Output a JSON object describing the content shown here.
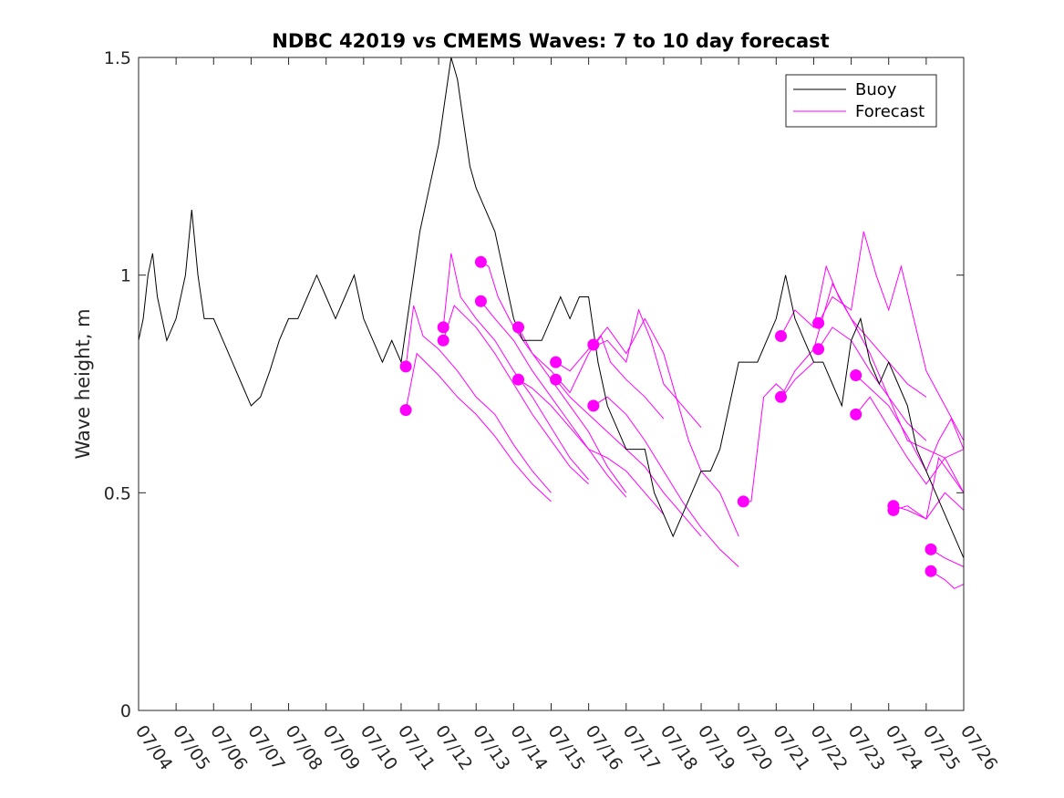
{
  "chart_data": {
    "type": "line",
    "title": "NDBC 42019 vs CMEMS Waves: 7 to 10 day forecast",
    "xlabel": "",
    "ylabel": "Wave height, m",
    "xlim": [
      "07/04",
      "07/26"
    ],
    "ylim": [
      0,
      1.5
    ],
    "x_ticks": [
      "07/04",
      "07/05",
      "07/06",
      "07/07",
      "07/08",
      "07/09",
      "07/10",
      "07/11",
      "07/12",
      "07/13",
      "07/14",
      "07/15",
      "07/16",
      "07/17",
      "07/18",
      "07/19",
      "07/20",
      "07/21",
      "07/22",
      "07/23",
      "07/24",
      "07/25",
      "07/26"
    ],
    "y_ticks": [
      "0",
      "0.5",
      "1",
      "1.5"
    ],
    "grid": false,
    "legend": {
      "placement": "top-right",
      "entries": [
        "Buoy",
        "Forecast"
      ]
    },
    "colors": {
      "buoy": "#000000",
      "forecast": "#ff00ff"
    },
    "buoy": {
      "name": "Buoy",
      "x": [
        "07/04 00:00",
        "07/04 03:00",
        "07/04 06:00",
        "07/04 09:00",
        "07/04 12:00",
        "07/04 18:00",
        "07/05 00:00",
        "07/05 06:00",
        "07/05 10:00",
        "07/05 14:00",
        "07/05 18:00",
        "07/06 00:00",
        "07/06 06:00",
        "07/06 12:00",
        "07/06 18:00",
        "07/07 00:00",
        "07/07 06:00",
        "07/07 12:00",
        "07/07 18:00",
        "07/08 00:00",
        "07/08 06:00",
        "07/08 12:00",
        "07/08 18:00",
        "07/09 00:00",
        "07/09 06:00",
        "07/09 12:00",
        "07/09 18:00",
        "07/10 00:00",
        "07/10 06:00",
        "07/10 12:00",
        "07/10 18:00",
        "07/11 00:00",
        "07/11 04:00",
        "07/11 08:00",
        "07/11 12:00",
        "07/11 18:00",
        "07/12 00:00",
        "07/12 04:00",
        "07/12 08:00",
        "07/12 12:00",
        "07/12 16:00",
        "07/12 20:00",
        "07/13 00:00",
        "07/13 06:00",
        "07/13 12:00",
        "07/13 18:00",
        "07/14 00:00",
        "07/14 06:00",
        "07/14 12:00",
        "07/14 18:00",
        "07/15 00:00",
        "07/15 06:00",
        "07/15 12:00",
        "07/15 18:00",
        "07/16 00:00",
        "07/16 06:00",
        "07/16 12:00",
        "07/16 18:00",
        "07/17 00:00",
        "07/17 06:00",
        "07/17 12:00",
        "07/17 18:00",
        "07/18 00:00",
        "07/18 06:00",
        "07/18 12:00",
        "07/18 18:00",
        "07/19 00:00",
        "07/19 06:00",
        "07/19 12:00",
        "07/19 18:00",
        "07/20 00:00",
        "07/20 06:00",
        "07/20 12:00",
        "07/20 18:00",
        "07/21 00:00",
        "07/21 06:00",
        "07/21 12:00",
        "07/21 18:00",
        "07/22 00:00",
        "07/22 06:00",
        "07/22 12:00",
        "07/22 18:00",
        "07/23 00:00",
        "07/23 06:00",
        "07/23 12:00",
        "07/23 18:00",
        "07/24 00:00",
        "07/24 06:00",
        "07/24 12:00",
        "07/24 18:00",
        "07/25 00:00",
        "07/25 06:00",
        "07/25 12:00",
        "07/25 18:00",
        "07/26 00:00"
      ],
      "y": [
        0.85,
        0.9,
        1.0,
        1.05,
        0.95,
        0.85,
        0.9,
        1.0,
        1.15,
        1.0,
        0.9,
        0.9,
        0.85,
        0.8,
        0.75,
        0.7,
        0.72,
        0.78,
        0.85,
        0.9,
        0.9,
        0.95,
        1.0,
        0.95,
        0.9,
        0.95,
        1.0,
        0.9,
        0.85,
        0.8,
        0.85,
        0.8,
        0.9,
        1.0,
        1.1,
        1.2,
        1.3,
        1.4,
        1.5,
        1.45,
        1.35,
        1.25,
        1.2,
        1.15,
        1.1,
        1.0,
        0.9,
        0.85,
        0.85,
        0.85,
        0.9,
        0.95,
        0.9,
        0.95,
        0.95,
        0.8,
        0.7,
        0.65,
        0.6,
        0.6,
        0.6,
        0.5,
        0.45,
        0.4,
        0.45,
        0.5,
        0.55,
        0.55,
        0.6,
        0.7,
        0.8,
        0.8,
        0.8,
        0.85,
        0.9,
        1.0,
        0.9,
        0.85,
        0.8,
        0.8,
        0.75,
        0.7,
        0.85,
        0.9,
        0.8,
        0.75,
        0.8,
        0.75,
        0.7,
        0.6,
        0.55,
        0.5,
        0.45,
        0.4,
        0.35
      ]
    },
    "forecasts": [
      {
        "name": "",
        "x": [
          "07/11 03:00",
          "07/11 08:00",
          "07/11 14:00",
          "07/12 00:00",
          "07/12 12:00",
          "07/13 00:00",
          "07/13 12:00",
          "07/14 00:00",
          "07/14 12:00",
          "07/15 00:00"
        ],
        "y": [
          0.79,
          0.93,
          0.86,
          0.83,
          0.78,
          0.72,
          0.68,
          0.61,
          0.55,
          0.5
        ]
      },
      {
        "name": "",
        "x": [
          "07/11 03:00",
          "07/11 10:00",
          "07/12 00:00",
          "07/12 12:00",
          "07/13 00:00",
          "07/13 12:00",
          "07/14 00:00",
          "07/14 12:00",
          "07/15 00:00"
        ],
        "y": [
          0.69,
          0.82,
          0.77,
          0.72,
          0.68,
          0.63,
          0.57,
          0.52,
          0.48
        ]
      },
      {
        "name": "",
        "x": [
          "07/12 03:00",
          "07/12 08:00",
          "07/12 14:00",
          "07/13 00:00",
          "07/13 12:00",
          "07/14 00:00",
          "07/14 12:00",
          "07/15 00:00",
          "07/15 12:00",
          "07/16 00:00"
        ],
        "y": [
          0.88,
          1.05,
          0.95,
          0.9,
          0.85,
          0.78,
          0.72,
          0.65,
          0.58,
          0.53
        ]
      },
      {
        "name": "",
        "x": [
          "07/12 03:00",
          "07/12 10:00",
          "07/13 00:00",
          "07/13 12:00",
          "07/14 00:00",
          "07/14 12:00",
          "07/15 00:00",
          "07/15 12:00",
          "07/16 00:00"
        ],
        "y": [
          0.85,
          0.93,
          0.88,
          0.82,
          0.75,
          0.68,
          0.62,
          0.56,
          0.52
        ]
      },
      {
        "name": "",
        "x": [
          "07/13 03:00",
          "07/13 08:00",
          "07/13 14:00",
          "07/14 00:00",
          "07/14 12:00",
          "07/15 00:00",
          "07/15 12:00",
          "07/16 00:00",
          "07/16 12:00",
          "07/17 00:00"
        ],
        "y": [
          1.03,
          1.02,
          0.95,
          0.88,
          0.82,
          0.76,
          0.7,
          0.64,
          0.56,
          0.5
        ]
      },
      {
        "name": "",
        "x": [
          "07/13 03:00",
          "07/13 12:00",
          "07/14 00:00",
          "07/14 12:00",
          "07/15 00:00",
          "07/15 12:00",
          "07/16 00:00",
          "07/16 12:00",
          "07/17 00:00"
        ],
        "y": [
          0.94,
          0.9,
          0.85,
          0.78,
          0.72,
          0.66,
          0.6,
          0.54,
          0.49
        ]
      },
      {
        "name": "",
        "x": [
          "07/14 03:00",
          "07/14 12:00",
          "07/15 00:00",
          "07/15 12:00",
          "07/16 00:00",
          "07/16 08:00",
          "07/16 14:00",
          "07/17 00:00",
          "07/17 12:00",
          "07/18 00:00"
        ],
        "y": [
          0.88,
          0.82,
          0.78,
          0.73,
          0.82,
          0.86,
          0.8,
          0.76,
          0.72,
          0.67
        ]
      },
      {
        "name": "",
        "x": [
          "07/14 03:00",
          "07/14 12:00",
          "07/15 00:00",
          "07/15 12:00",
          "07/16 00:00",
          "07/16 12:00",
          "07/17 00:00",
          "07/17 12:00",
          "07/18 00:00"
        ],
        "y": [
          0.76,
          0.74,
          0.7,
          0.65,
          0.6,
          0.58,
          0.55,
          0.5,
          0.45
        ]
      },
      {
        "name": "",
        "x": [
          "07/15 03:00",
          "07/15 12:00",
          "07/16 00:00",
          "07/16 12:00",
          "07/17 00:00",
          "07/17 08:00",
          "07/17 16:00",
          "07/18 00:00",
          "07/18 12:00",
          "07/19 00:00"
        ],
        "y": [
          0.8,
          0.78,
          0.83,
          0.85,
          0.8,
          0.92,
          0.85,
          0.75,
          0.7,
          0.65
        ]
      },
      {
        "name": "",
        "x": [
          "07/15 03:00",
          "07/15 12:00",
          "07/16 00:00",
          "07/16 12:00",
          "07/17 00:00",
          "07/17 12:00",
          "07/18 00:00",
          "07/18 12:00",
          "07/19 00:00"
        ],
        "y": [
          0.76,
          0.72,
          0.68,
          0.64,
          0.6,
          0.56,
          0.5,
          0.45,
          0.4
        ]
      },
      {
        "name": "",
        "x": [
          "07/16 03:00",
          "07/16 12:00",
          "07/17 00:00",
          "07/17 12:00",
          "07/18 00:00",
          "07/18 08:00",
          "07/18 16:00",
          "07/19 00:00",
          "07/19 12:00",
          "07/20 00:00"
        ],
        "y": [
          0.84,
          0.88,
          0.82,
          0.9,
          0.82,
          0.72,
          0.62,
          0.55,
          0.5,
          0.4
        ]
      },
      {
        "name": "",
        "x": [
          "07/16 03:00",
          "07/16 12:00",
          "07/17 00:00",
          "07/17 12:00",
          "07/18 00:00",
          "07/18 12:00",
          "07/19 00:00",
          "07/19 12:00",
          "07/20 00:00"
        ],
        "y": [
          0.7,
          0.72,
          0.68,
          0.62,
          0.55,
          0.48,
          0.42,
          0.37,
          0.33
        ]
      },
      {
        "name": "",
        "x": [
          "07/20 03:00",
          "07/20 08:00",
          "07/20 16:00",
          "07/21 00:00",
          "07/21 06:00",
          "07/21 12:00",
          "07/21 18:00",
          "07/22 00:00"
        ],
        "y": [
          0.48,
          0.48,
          0.72,
          0.75,
          0.73,
          0.76,
          0.78,
          0.8
        ]
      },
      {
        "name": "",
        "x": [
          "07/21 03:00",
          "07/21 12:00",
          "07/22 00:00",
          "07/22 08:00",
          "07/22 16:00",
          "07/23 00:00",
          "07/23 12:00",
          "07/24 00:00",
          "07/24 12:00",
          "07/25 00:00"
        ],
        "y": [
          0.86,
          0.92,
          0.88,
          1.02,
          0.95,
          0.9,
          0.85,
          0.8,
          0.75,
          0.72
        ]
      },
      {
        "name": "",
        "x": [
          "07/21 03:00",
          "07/21 12:00",
          "07/22 00:00",
          "07/22 12:00",
          "07/23 00:00",
          "07/23 12:00",
          "07/24 00:00",
          "07/24 12:00",
          "07/25 00:00"
        ],
        "y": [
          0.72,
          0.78,
          0.83,
          0.98,
          0.9,
          0.82,
          0.72,
          0.66,
          0.62
        ]
      },
      {
        "name": "",
        "x": [
          "07/22 03:00",
          "07/22 12:00",
          "07/23 00:00",
          "07/23 08:00",
          "07/23 16:00",
          "07/24 00:00",
          "07/24 08:00",
          "07/24 16:00",
          "07/25 00:00",
          "07/25 12:00",
          "07/26 00:00"
        ],
        "y": [
          0.89,
          0.95,
          0.92,
          1.1,
          1.0,
          0.92,
          1.02,
          0.9,
          0.78,
          0.7,
          0.62
        ]
      },
      {
        "name": "",
        "x": [
          "07/22 03:00",
          "07/22 12:00",
          "07/23 00:00",
          "07/23 12:00",
          "07/24 00:00",
          "07/24 12:00",
          "07/25 00:00",
          "07/25 12:00",
          "07/26 00:00"
        ],
        "y": [
          0.83,
          0.88,
          0.85,
          0.78,
          0.72,
          0.62,
          0.6,
          0.58,
          0.5
        ]
      },
      {
        "name": "",
        "x": [
          "07/23 03:00",
          "07/23 12:00",
          "07/24 00:00",
          "07/24 12:00",
          "07/25 00:00",
          "07/25 08:00",
          "07/25 16:00",
          "07/26 00:00"
        ],
        "y": [
          0.77,
          0.74,
          0.7,
          0.63,
          0.55,
          0.62,
          0.67,
          0.6
        ]
      },
      {
        "name": "",
        "x": [
          "07/23 03:00",
          "07/23 12:00",
          "07/24 00:00",
          "07/24 12:00",
          "07/25 00:00",
          "07/25 12:00",
          "07/26 00:00"
        ],
        "y": [
          0.68,
          0.72,
          0.65,
          0.58,
          0.52,
          0.58,
          0.6
        ]
      },
      {
        "name": "",
        "x": [
          "07/24 03:00",
          "07/24 12:00",
          "07/25 00:00",
          "07/25 08:00",
          "07/25 16:00",
          "07/26 00:00"
        ],
        "y": [
          0.47,
          0.46,
          0.44,
          0.58,
          0.54,
          0.5
        ]
      },
      {
        "name": "",
        "x": [
          "07/24 03:00",
          "07/24 12:00",
          "07/25 00:00",
          "07/25 12:00",
          "07/26 00:00"
        ],
        "y": [
          0.46,
          0.47,
          0.44,
          0.5,
          0.46
        ]
      },
      {
        "name": "",
        "x": [
          "07/25 03:00",
          "07/25 12:00",
          "07/26 00:00"
        ],
        "y": [
          0.37,
          0.35,
          0.33
        ]
      },
      {
        "name": "",
        "x": [
          "07/25 03:00",
          "07/25 12:00",
          "07/25 18:00",
          "07/26 00:00"
        ],
        "y": [
          0.32,
          0.3,
          0.28,
          0.29
        ]
      }
    ],
    "forecast_start_points": [
      {
        "x": "07/11 03:00",
        "y": 0.79
      },
      {
        "x": "07/11 03:00",
        "y": 0.69
      },
      {
        "x": "07/12 03:00",
        "y": 0.88
      },
      {
        "x": "07/12 03:00",
        "y": 0.85
      },
      {
        "x": "07/13 03:00",
        "y": 1.03
      },
      {
        "x": "07/13 03:00",
        "y": 0.94
      },
      {
        "x": "07/14 03:00",
        "y": 0.88
      },
      {
        "x": "07/14 03:00",
        "y": 0.76
      },
      {
        "x": "07/15 03:00",
        "y": 0.8
      },
      {
        "x": "07/15 03:00",
        "y": 0.76
      },
      {
        "x": "07/16 03:00",
        "y": 0.84
      },
      {
        "x": "07/16 03:00",
        "y": 0.7
      },
      {
        "x": "07/20 03:00",
        "y": 0.48
      },
      {
        "x": "07/21 03:00",
        "y": 0.86
      },
      {
        "x": "07/21 03:00",
        "y": 0.72
      },
      {
        "x": "07/22 03:00",
        "y": 0.89
      },
      {
        "x": "07/22 03:00",
        "y": 0.83
      },
      {
        "x": "07/23 03:00",
        "y": 0.77
      },
      {
        "x": "07/23 03:00",
        "y": 0.68
      },
      {
        "x": "07/24 03:00",
        "y": 0.47
      },
      {
        "x": "07/24 03:00",
        "y": 0.46
      },
      {
        "x": "07/25 03:00",
        "y": 0.37
      },
      {
        "x": "07/25 03:00",
        "y": 0.32
      }
    ]
  }
}
